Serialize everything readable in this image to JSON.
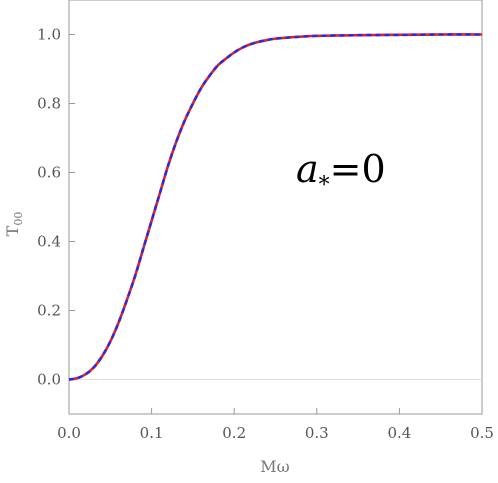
{
  "chart_data": {
    "type": "line",
    "xlabel": "Mω",
    "ylabel_main": "T",
    "ylabel_sub": "00",
    "annotation": {
      "symbol": "a",
      "subscript": "*",
      "rest": "=0"
    },
    "xlim": [
      0,
      0.5
    ],
    "ylim": [
      -0.1,
      1.1
    ],
    "x_ticks": [
      "0.0",
      "0.1",
      "0.2",
      "0.3",
      "0.4",
      "0.5"
    ],
    "y_ticks": [
      "0.0",
      "0.2",
      "0.4",
      "0.6",
      "0.8",
      "1.0"
    ],
    "grid": false,
    "legend": "none",
    "series": [
      {
        "color": "#e02020",
        "style": "solid",
        "x": [
          0.0,
          0.01,
          0.02,
          0.03,
          0.04,
          0.05,
          0.06,
          0.07,
          0.08,
          0.09,
          0.1,
          0.11,
          0.12,
          0.13,
          0.14,
          0.15,
          0.16,
          0.17,
          0.18,
          0.19,
          0.2,
          0.21,
          0.22,
          0.23,
          0.24,
          0.25,
          0.27,
          0.3,
          0.35,
          0.4,
          0.45,
          0.5
        ],
        "y": [
          0.0,
          0.004,
          0.015,
          0.035,
          0.067,
          0.11,
          0.165,
          0.23,
          0.3,
          0.38,
          0.46,
          0.54,
          0.62,
          0.69,
          0.75,
          0.8,
          0.845,
          0.88,
          0.91,
          0.93,
          0.948,
          0.962,
          0.972,
          0.979,
          0.984,
          0.988,
          0.992,
          0.996,
          0.998,
          0.999,
          1.0,
          1.0
        ]
      },
      {
        "color": "#2a2ae0",
        "style": "dashed",
        "x": [
          0.0,
          0.01,
          0.02,
          0.03,
          0.04,
          0.05,
          0.06,
          0.07,
          0.08,
          0.09,
          0.1,
          0.11,
          0.12,
          0.13,
          0.14,
          0.15,
          0.16,
          0.17,
          0.18,
          0.19,
          0.2,
          0.21,
          0.22,
          0.23,
          0.24,
          0.25,
          0.27,
          0.3,
          0.35,
          0.4,
          0.45,
          0.5
        ],
        "y": [
          0.0,
          0.004,
          0.015,
          0.035,
          0.067,
          0.11,
          0.165,
          0.23,
          0.3,
          0.38,
          0.46,
          0.54,
          0.62,
          0.69,
          0.75,
          0.8,
          0.845,
          0.88,
          0.91,
          0.93,
          0.948,
          0.962,
          0.972,
          0.979,
          0.984,
          0.988,
          0.992,
          0.996,
          0.998,
          0.999,
          1.0,
          1.0
        ]
      }
    ],
    "colors": {
      "frame": "#999999",
      "zero_line": "#dddddd"
    }
  }
}
